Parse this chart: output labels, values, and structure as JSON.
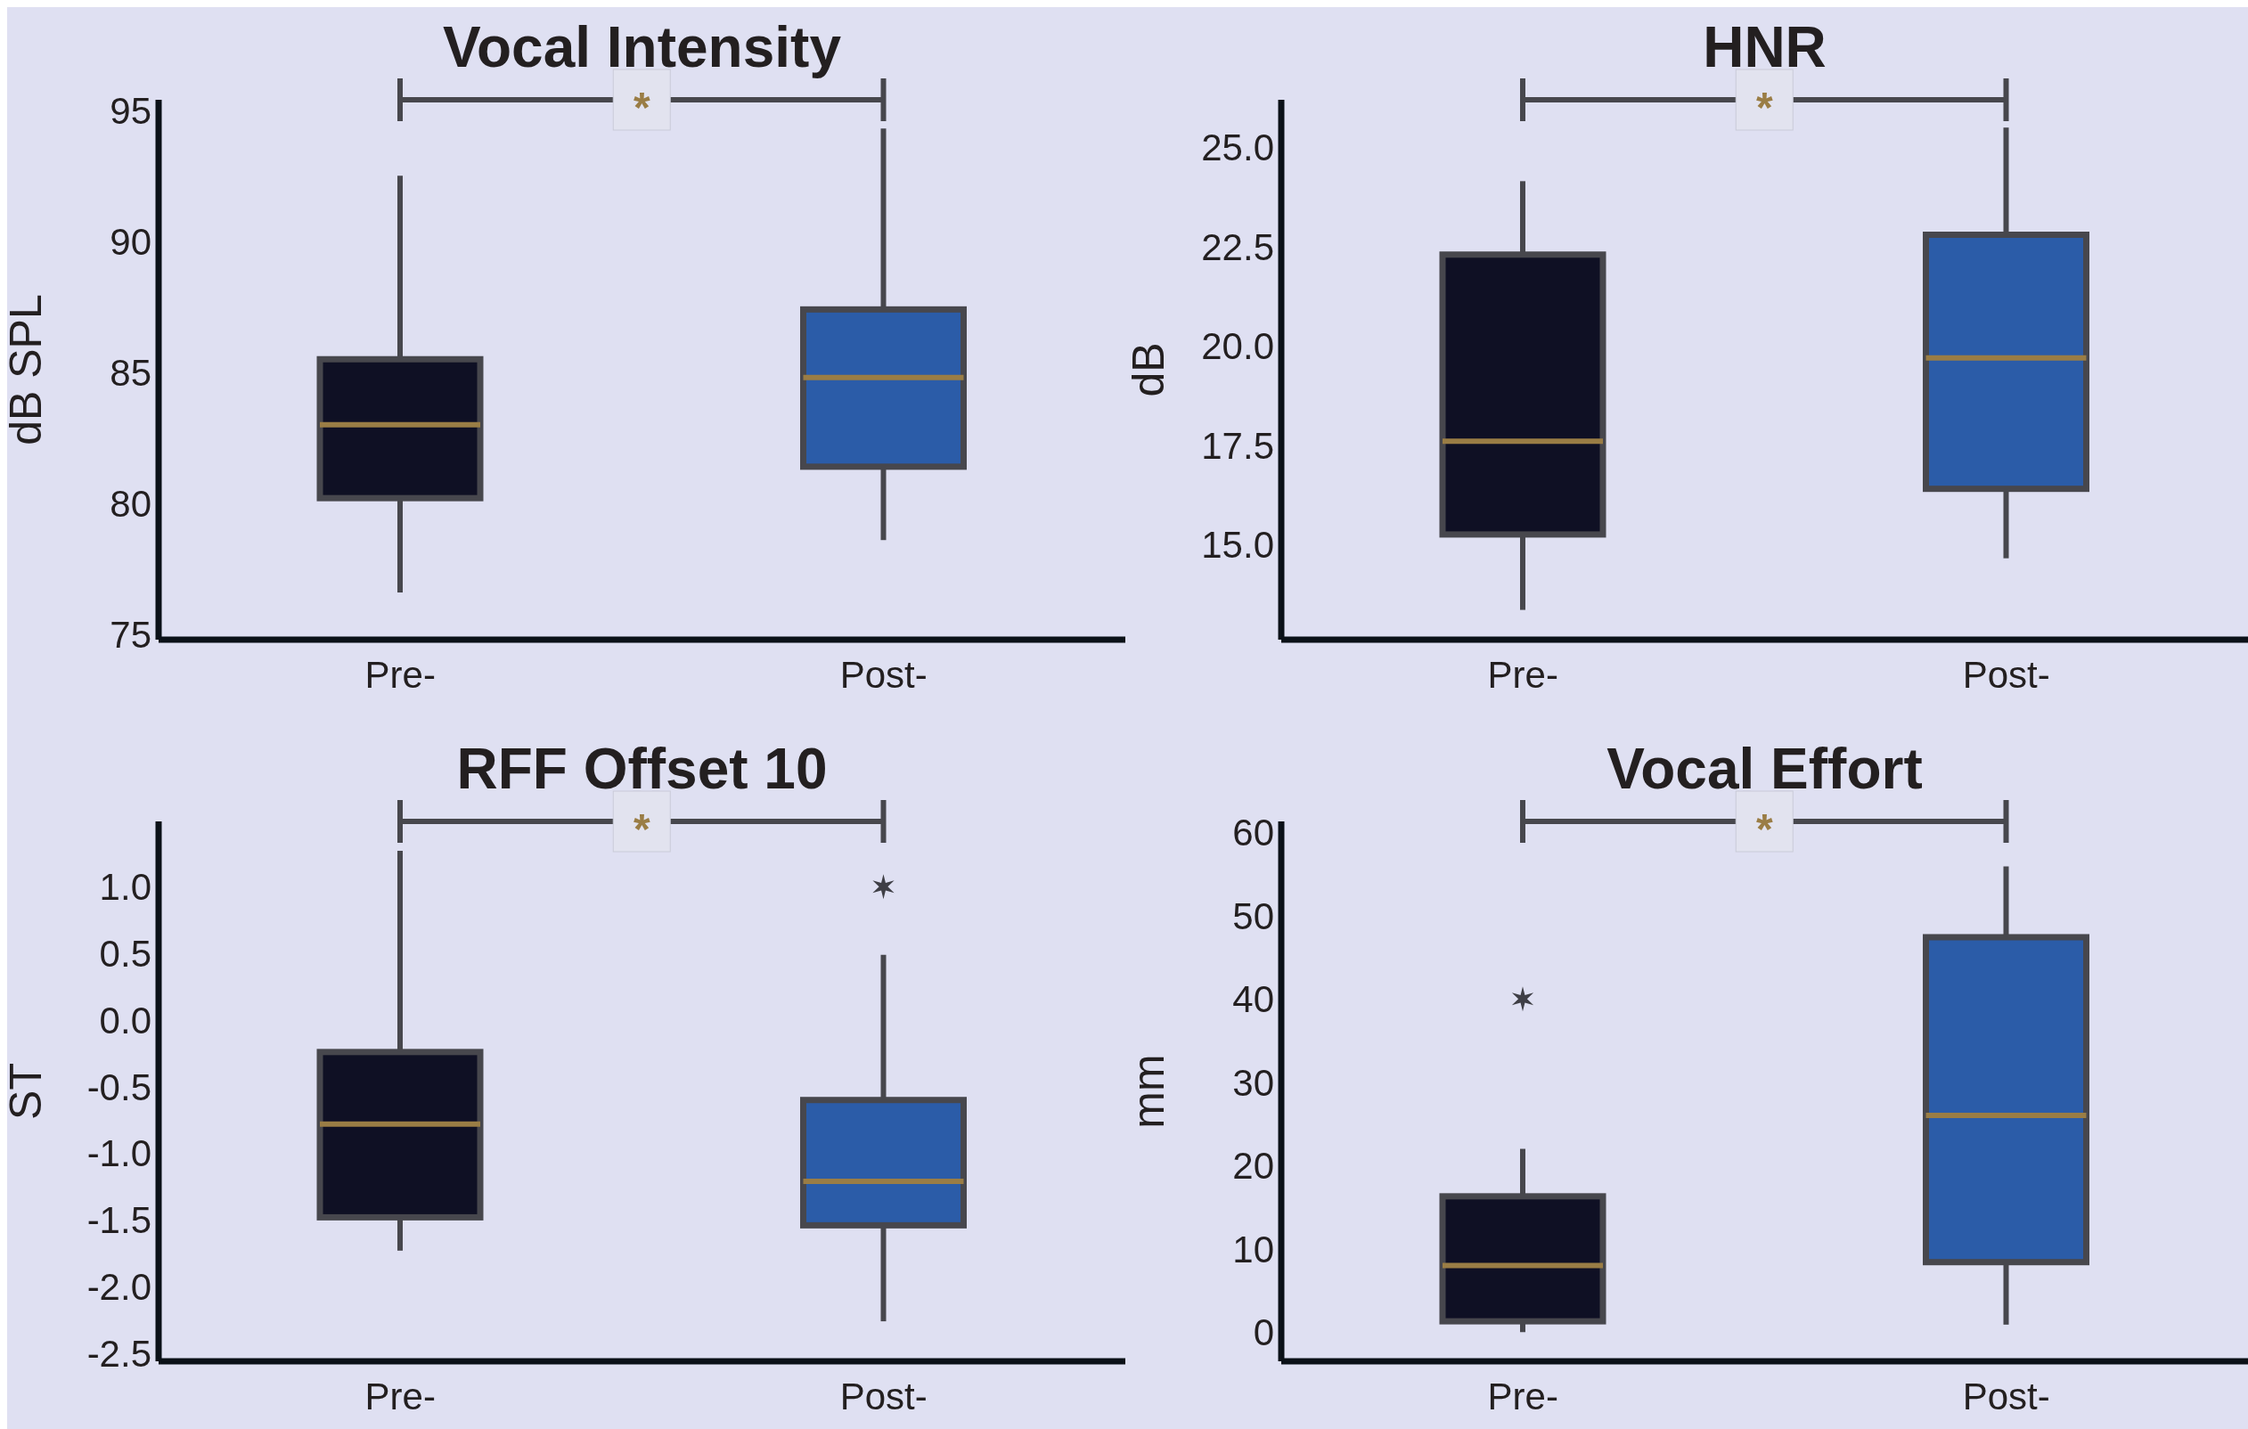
{
  "chart_data": [
    {
      "type": "box",
      "title": "Vocal Intensity",
      "ylabel": "dB SPL",
      "categories": [
        "Pre-",
        "Post-"
      ],
      "colors": [
        "#0f1024",
        "#2b5ca8"
      ],
      "annotations": [
        "*"
      ],
      "ylim": [
        74.8,
        95.4
      ],
      "yticks": [
        75,
        80,
        85,
        90,
        95
      ],
      "boxes": [
        {
          "low": 76.6,
          "q1": 80.2,
          "median": 83.0,
          "q3": 85.5,
          "high": 92.5
        },
        {
          "low": 78.6,
          "q1": 81.4,
          "median": 84.8,
          "q3": 87.4,
          "high": 94.3
        }
      ]
    },
    {
      "type": "box",
      "title": "HNR",
      "ylabel": "dB",
      "categories": [
        "Pre-",
        "Post-"
      ],
      "colors": [
        "#0f1024",
        "#2b5ca8"
      ],
      "annotations": [
        "*"
      ],
      "ylim": [
        12.6,
        26.2
      ],
      "yticks": [
        {
          "value": 15,
          "label": "15.0"
        },
        17.5,
        {
          "value": 20,
          "label": "20.0"
        },
        22.5,
        {
          "value": 25,
          "label": "25.0"
        }
      ],
      "boxes": [
        {
          "low": 13.35,
          "q1": 15.25,
          "median": 17.6,
          "q3": 22.3,
          "high": 24.15
        },
        {
          "low": 14.65,
          "q1": 16.4,
          "median": 19.7,
          "q3": 22.8,
          "high": 25.5
        }
      ]
    },
    {
      "type": "box",
      "title": "RFF Offset 10",
      "ylabel": "ST",
      "categories": [
        "Pre-",
        "Post-"
      ],
      "colors": [
        "#0f1024",
        "#2b5ca8"
      ],
      "marker": "star",
      "annotations": [
        "*"
      ],
      "ylim": [
        -2.56,
        1.49
      ],
      "yticks": [
        -2.5,
        {
          "value": -2,
          "label": "-2.0"
        },
        -1.5,
        {
          "value": -1,
          "label": "-1.0"
        },
        -0.5,
        {
          "value": 0,
          "label": "0.0"
        },
        0.5,
        {
          "value": 1,
          "label": "1.0"
        }
      ],
      "boxes": [
        {
          "low": -1.73,
          "q1": -1.48,
          "median": -0.78,
          "q3": -0.24,
          "high": 1.27
        },
        {
          "low": -2.26,
          "q1": -1.54,
          "median": -1.21,
          "q3": -0.6,
          "high": 0.49,
          "outliers": [
            1.0
          ]
        }
      ]
    },
    {
      "type": "box",
      "title": "Vocal Effort",
      "ylabel": "mm",
      "categories": [
        "Pre-",
        "Post-"
      ],
      "colors": [
        "#0f1024",
        "#2b5ca8"
      ],
      "marker": "star",
      "annotations": [
        "*"
      ],
      "ylim": [
        -3.5,
        61.3
      ],
      "yticks": [
        0,
        10,
        20,
        30,
        40,
        50,
        60
      ],
      "boxes": [
        {
          "low": 0,
          "q1": 1.3,
          "median": 8.0,
          "q3": 16.3,
          "high": 22.0,
          "outliers": [
            40
          ]
        },
        {
          "low": 0.9,
          "q1": 8.4,
          "median": 26.0,
          "q3": 47.4,
          "high": 55.9
        }
      ]
    }
  ]
}
